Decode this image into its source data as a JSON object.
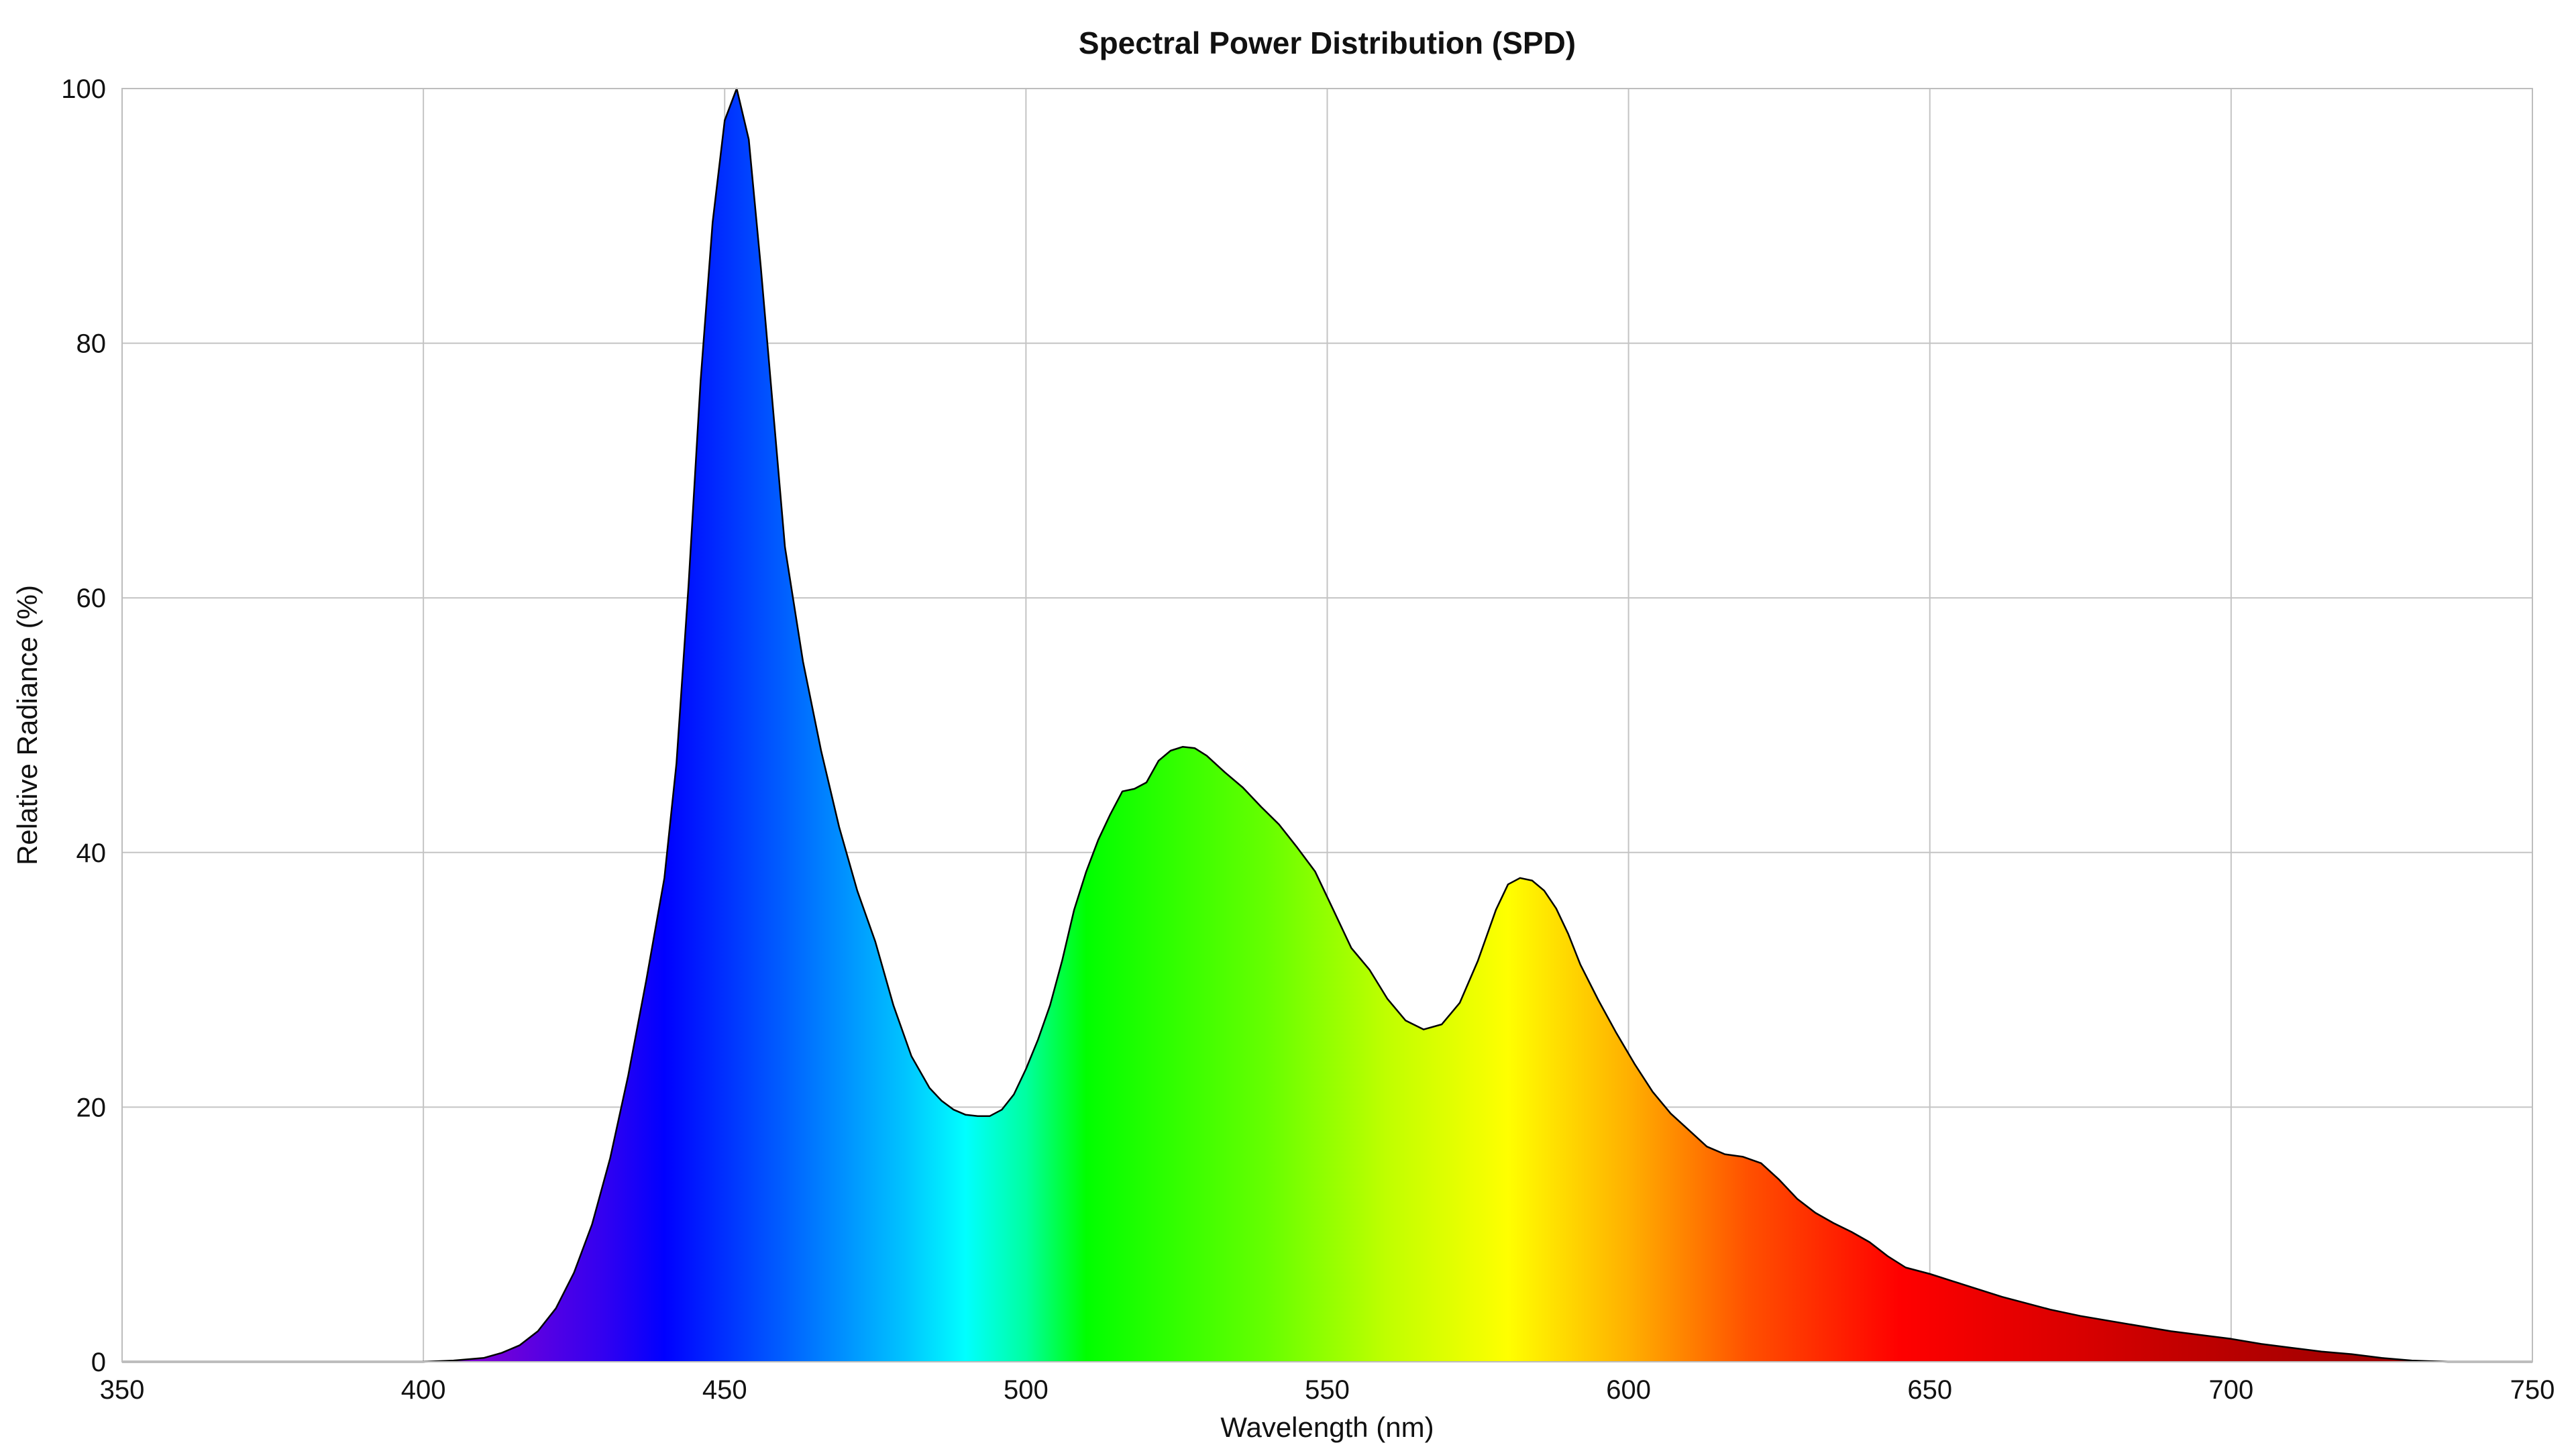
{
  "chart_data": {
    "type": "area",
    "title": "Spectral Power Distribution (SPD)",
    "xlabel": "Wavelength (nm)",
    "ylabel": "Relative Radiance (%)",
    "xlim": [
      350,
      750
    ],
    "ylim": [
      0,
      100
    ],
    "xticks": [
      350,
      400,
      450,
      500,
      550,
      600,
      650,
      700,
      750
    ],
    "yticks": [
      0,
      20,
      40,
      60,
      80,
      100
    ],
    "grid": true,
    "fill": "visible-spectrum gradient (violet-blue-cyan-green-yellow-orange-red)",
    "line_color": "#000000",
    "spectrum_stops": [
      {
        "nm": 410,
        "color": "#7a00d6"
      },
      {
        "nm": 430,
        "color": "#3200f0"
      },
      {
        "nm": 440,
        "color": "#0000ff"
      },
      {
        "nm": 460,
        "color": "#0060ff"
      },
      {
        "nm": 480,
        "color": "#00c4ff"
      },
      {
        "nm": 490,
        "color": "#00ffff"
      },
      {
        "nm": 500,
        "color": "#00ffa0"
      },
      {
        "nm": 510,
        "color": "#00ff00"
      },
      {
        "nm": 540,
        "color": "#66ff00"
      },
      {
        "nm": 560,
        "color": "#c0ff00"
      },
      {
        "nm": 580,
        "color": "#ffff00"
      },
      {
        "nm": 600,
        "color": "#ffb000"
      },
      {
        "nm": 620,
        "color": "#ff5000"
      },
      {
        "nm": 645,
        "color": "#ff0000"
      },
      {
        "nm": 700,
        "color": "#b80000"
      },
      {
        "nm": 750,
        "color": "#800000"
      }
    ],
    "series": [
      {
        "x": [
          350,
          380,
          400,
          405,
          410,
          413,
          416,
          419,
          422,
          425,
          428,
          431,
          434,
          437,
          440,
          442,
          444,
          446,
          448,
          450,
          452,
          454,
          456,
          458,
          460,
          463,
          466,
          469,
          472,
          475,
          478,
          481,
          484,
          486,
          488,
          490,
          492,
          494,
          496,
          498,
          500,
          502,
          504,
          506,
          508,
          510,
          512,
          514,
          516,
          518,
          520,
          522,
          524,
          526,
          528,
          530,
          533,
          536,
          539,
          542,
          545,
          548,
          551,
          554,
          557,
          560,
          563,
          566,
          569,
          572,
          575,
          578,
          580,
          582,
          584,
          586,
          588,
          590,
          592,
          595,
          598,
          601,
          604,
          607,
          610,
          613,
          616,
          619,
          622,
          625,
          628,
          631,
          634,
          637,
          640,
          643,
          646,
          650,
          654,
          658,
          662,
          666,
          670,
          675,
          680,
          685,
          690,
          695,
          700,
          705,
          710,
          715,
          720,
          725,
          730,
          733,
          736,
          740,
          750
        ],
        "y": [
          0,
          0,
          0,
          0.1,
          0.3,
          0.7,
          1.3,
          2.4,
          4.2,
          7,
          10.8,
          16,
          22.5,
          30,
          38,
          47,
          61,
          77,
          89.5,
          97.5,
          100,
          96,
          86,
          75,
          64,
          55,
          48,
          42,
          37,
          33,
          28,
          24,
          21.5,
          20.5,
          19.8,
          19.4,
          19.3,
          19.3,
          19.8,
          21,
          23,
          25.3,
          28,
          31.5,
          35.5,
          38.5,
          41,
          43,
          44.8,
          45,
          45.5,
          47.2,
          48,
          48.3,
          48.2,
          47.6,
          46.3,
          45.1,
          43.6,
          42.2,
          40.4,
          38.5,
          35.5,
          32.5,
          30.8,
          28.5,
          26.8,
          26.1,
          26.5,
          28.2,
          31.5,
          35.5,
          37.5,
          38,
          37.8,
          37,
          35.6,
          33.6,
          31.2,
          28.4,
          25.8,
          23.4,
          21.2,
          19.5,
          18.2,
          16.9,
          16.3,
          16.1,
          15.6,
          14.3,
          12.8,
          11.7,
          10.9,
          10.2,
          9.4,
          8.3,
          7.4,
          6.9,
          6.3,
          5.7,
          5.1,
          4.6,
          4.1,
          3.6,
          3.2,
          2.8,
          2.4,
          2.1,
          1.8,
          1.4,
          1.1,
          0.8,
          0.6,
          0.3,
          0.1,
          0.05,
          0,
          0,
          0
        ]
      }
    ]
  }
}
